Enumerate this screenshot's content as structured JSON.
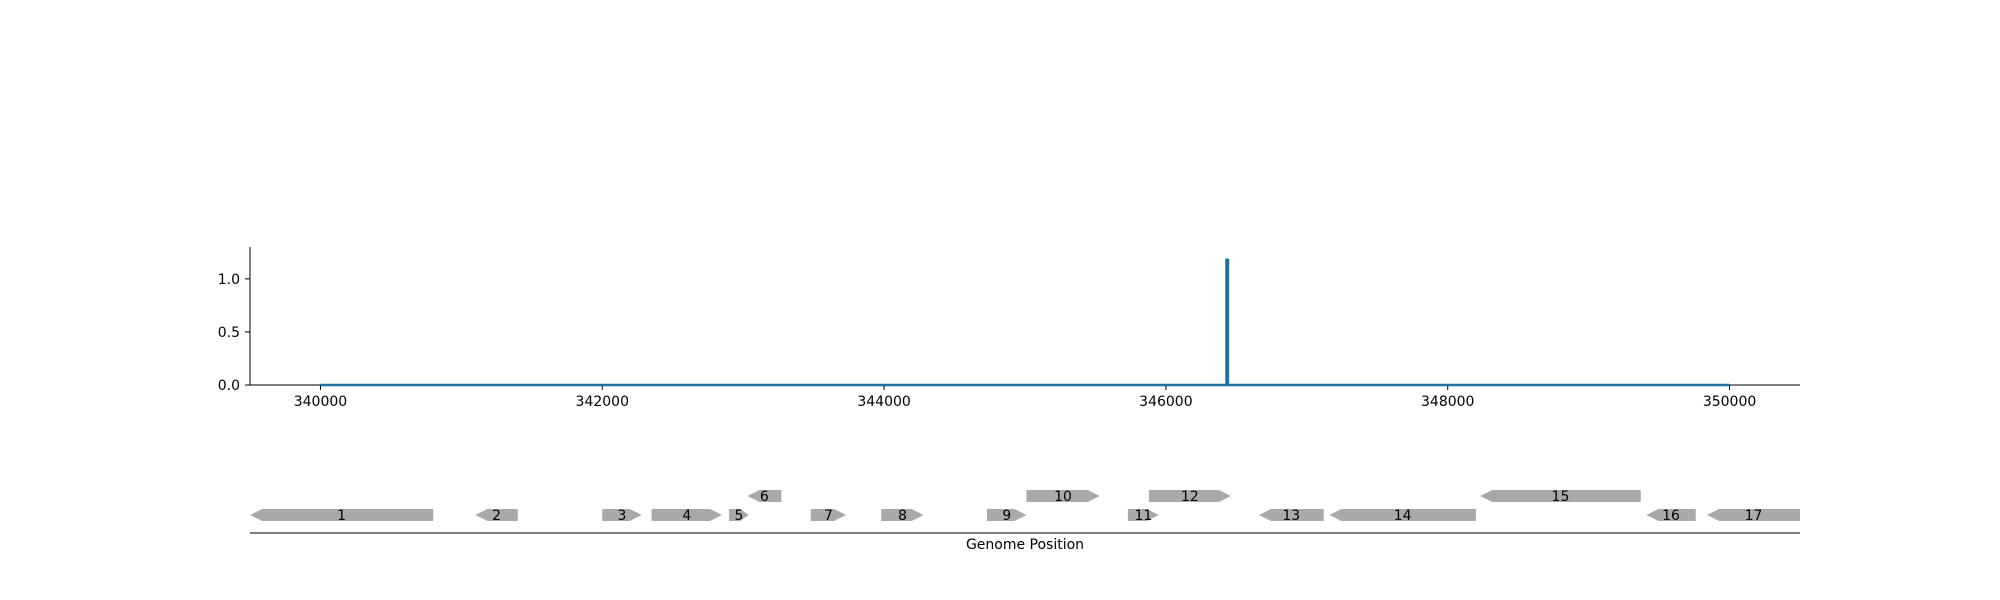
{
  "chart_data": {
    "type": "line",
    "title": "",
    "xlabel": "Genome Position",
    "ylabel": "",
    "xlim": [
      339500,
      350500
    ],
    "ylim": [
      0,
      1.3
    ],
    "grid": false,
    "x_ticks": [
      340000,
      342000,
      344000,
      346000,
      348000,
      350000
    ],
    "y_ticks": [
      0.0,
      0.5,
      1.0
    ],
    "x_tick_labels": [
      "340000",
      "342000",
      "344000",
      "346000",
      "348000",
      "350000"
    ],
    "y_tick_labels": [
      "0.0",
      "0.5",
      "1.0"
    ],
    "series": [
      {
        "color": "#1f6f9f",
        "points": [
          [
            340000,
            0
          ],
          [
            346430,
            0
          ],
          [
            346430,
            1.18
          ],
          [
            346440,
            1.18
          ],
          [
            346440,
            0
          ],
          [
            350000,
            0
          ]
        ]
      }
    ],
    "genes": [
      {
        "label": "1",
        "start": 339500,
        "end": 340800,
        "strand": "-",
        "row": 0
      },
      {
        "label": "2",
        "start": 341100,
        "end": 341400,
        "strand": "-",
        "row": 0
      },
      {
        "label": "3",
        "start": 342000,
        "end": 342280,
        "strand": "+",
        "row": 0
      },
      {
        "label": "4",
        "start": 342350,
        "end": 342850,
        "strand": "+",
        "row": 0
      },
      {
        "label": "5",
        "start": 342900,
        "end": 343040,
        "strand": "+",
        "row": 0
      },
      {
        "label": "6",
        "start": 343030,
        "end": 343270,
        "strand": "-",
        "row": 1
      },
      {
        "label": "7",
        "start": 343480,
        "end": 343730,
        "strand": "+",
        "row": 0
      },
      {
        "label": "8",
        "start": 343980,
        "end": 344280,
        "strand": "+",
        "row": 0
      },
      {
        "label": "9",
        "start": 344730,
        "end": 345010,
        "strand": "+",
        "row": 0
      },
      {
        "label": "10",
        "start": 345010,
        "end": 345530,
        "strand": "+",
        "row": 1
      },
      {
        "label": "11",
        "start": 345730,
        "end": 345950,
        "strand": "+",
        "row": 0
      },
      {
        "label": "12",
        "start": 345880,
        "end": 346460,
        "strand": "+",
        "row": 1
      },
      {
        "label": "13",
        "start": 346660,
        "end": 347120,
        "strand": "-",
        "row": 0
      },
      {
        "label": "14",
        "start": 347160,
        "end": 348200,
        "strand": "-",
        "row": 0
      },
      {
        "label": "15",
        "start": 348230,
        "end": 349370,
        "strand": "-",
        "row": 1
      },
      {
        "label": "16",
        "start": 349410,
        "end": 349760,
        "strand": "-",
        "row": 0
      },
      {
        "label": "17",
        "start": 349840,
        "end": 350500,
        "strand": "-",
        "row": 0
      }
    ],
    "colors": {
      "line": "#1f6f9f",
      "gene": "#a9a9a9",
      "axis": "#000000"
    }
  }
}
